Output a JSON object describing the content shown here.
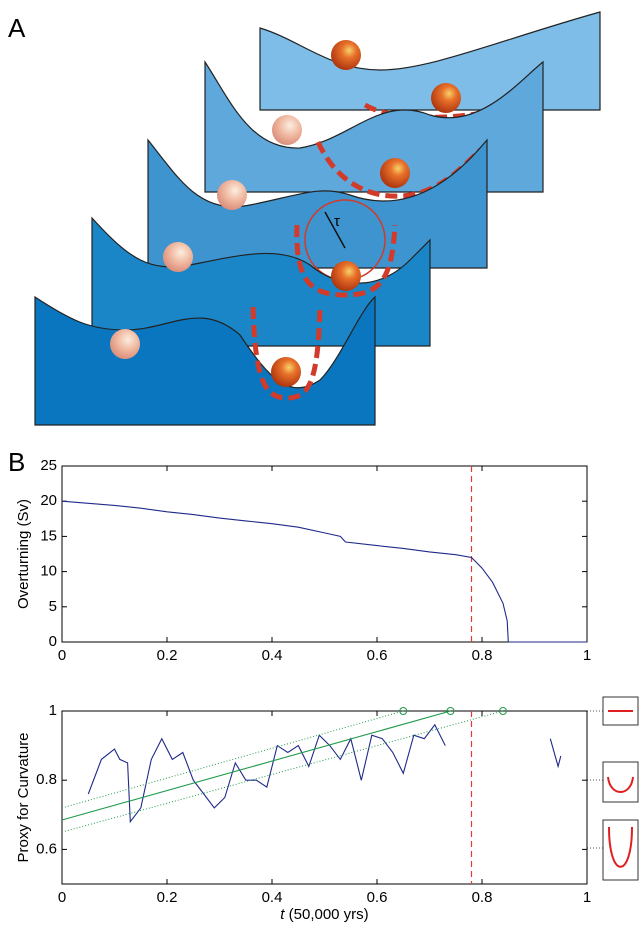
{
  "panel_a": {
    "label": "A",
    "tau": "τ"
  },
  "chart_data": [
    {
      "type": "line",
      "panel_label": "B",
      "ylabel": "Overturning (Sv)",
      "xlim": [
        0,
        1
      ],
      "xticks": [
        0,
        0.2,
        0.4,
        0.6,
        0.8,
        1
      ],
      "ylim": [
        0,
        25
      ],
      "yticks": [
        0,
        5,
        10,
        15,
        20,
        25
      ],
      "vline": 0.78,
      "vline_color": "#e03a3a",
      "series": [
        {
          "color": "#1f2a8a",
          "style": "solid",
          "x": [
            0,
            0.05,
            0.1,
            0.15,
            0.2,
            0.25,
            0.3,
            0.35,
            0.4,
            0.45,
            0.5,
            0.53,
            0.54,
            0.6,
            0.65,
            0.7,
            0.75,
            0.78,
            0.8,
            0.82,
            0.84,
            0.848,
            0.85,
            0.9,
            0.95,
            1
          ],
          "values": [
            20,
            19.7,
            19.4,
            19,
            18.5,
            18.1,
            17.6,
            17.2,
            16.8,
            16.3,
            15.5,
            15,
            14.2,
            13.7,
            13.3,
            12.8,
            12.4,
            12,
            10.5,
            8.5,
            5.5,
            3,
            0,
            0,
            0,
            0
          ]
        }
      ]
    },
    {
      "type": "line",
      "ylabel": "Proxy for Curvature",
      "xlabel": {
        "variable": "t",
        "unit": "(50,000 yrs)"
      },
      "xlim": [
        0,
        1
      ],
      "xticks": [
        0,
        0.2,
        0.4,
        0.6,
        0.8,
        1
      ],
      "ylim": [
        0.5,
        1
      ],
      "yticks": [
        0.6,
        0.8,
        1
      ],
      "vline": 0.78,
      "vline_color": "#e03a3a",
      "series": [
        {
          "color": "#1f2a8a",
          "style": "solid",
          "x": [
            0.05,
            0.075,
            0.1,
            0.11,
            0.125,
            0.13,
            0.15,
            0.17,
            0.19,
            0.21,
            0.23,
            0.25,
            0.27,
            0.29,
            0.31,
            0.33,
            0.35,
            0.37,
            0.39,
            0.41,
            0.43,
            0.45,
            0.47,
            0.49,
            0.51,
            0.53,
            0.55,
            0.57,
            0.59,
            0.61,
            0.63,
            0.65,
            0.67,
            0.69,
            0.71,
            0.73,
            0.8,
            0.93,
            0.945,
            0.95
          ],
          "values": [
            0.76,
            0.86,
            0.89,
            0.86,
            0.85,
            0.68,
            0.72,
            0.86,
            0.92,
            0.86,
            0.88,
            0.8,
            0.76,
            0.72,
            0.75,
            0.85,
            0.8,
            0.8,
            0.78,
            0.9,
            0.88,
            0.9,
            0.84,
            0.93,
            0.9,
            0.86,
            0.92,
            0.8,
            0.93,
            0.92,
            0.88,
            0.82,
            0.93,
            0.92,
            0.96,
            0.9,
            null,
            0.92,
            0.84,
            0.87
          ]
        },
        {
          "color": "#1f9a4a",
          "style": "solid",
          "x": [
            0,
            0.74
          ],
          "values": [
            0.685,
            1
          ]
        },
        {
          "color": "#1f9a4a",
          "style": "dotted",
          "x": [
            0,
            0.65
          ],
          "values": [
            0.72,
            1
          ]
        },
        {
          "color": "#1f9a4a",
          "style": "dotted",
          "x": [
            0,
            0.84
          ],
          "values": [
            0.65,
            1
          ]
        },
        {
          "color": "#1f9a4a",
          "style": "marker",
          "x": [
            0.65,
            0.74,
            0.84
          ],
          "values": [
            1,
            1,
            1
          ]
        }
      ]
    }
  ]
}
